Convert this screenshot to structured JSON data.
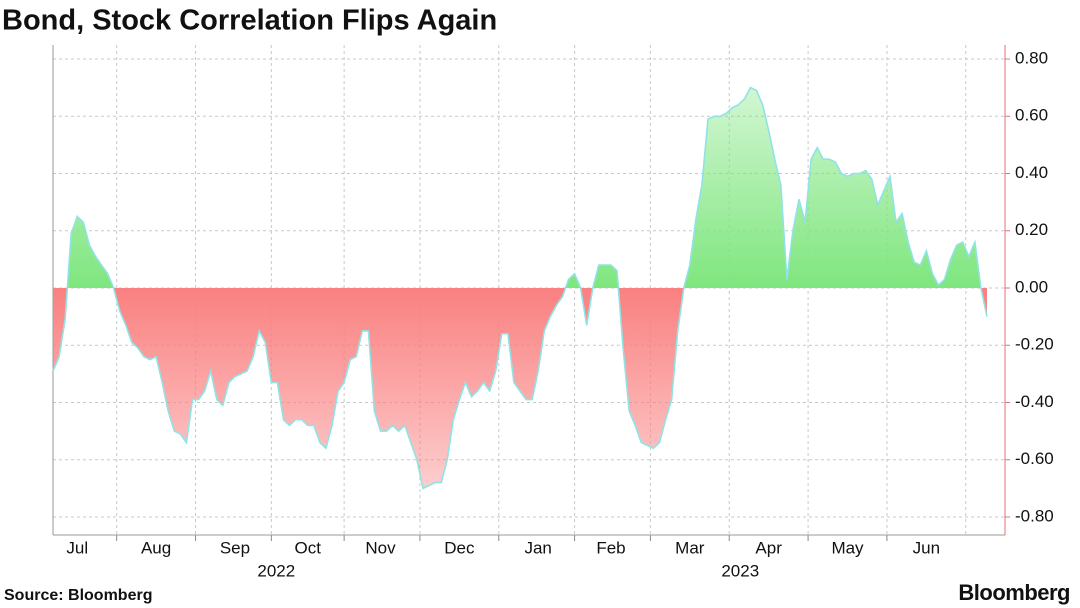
{
  "chart_data": {
    "type": "area",
    "title": "Bond, Stock Correlation Flips Again",
    "source": "Source: Bloomberg",
    "logo": "Bloomberg",
    "years": [
      "2022",
      "2023"
    ],
    "categories": [
      null,
      null,
      null,
      null,
      "Jul",
      null,
      null,
      null,
      null,
      null,
      null,
      null,
      null,
      null,
      null,
      null,
      null,
      "Aug",
      null,
      null,
      null,
      null,
      null,
      null,
      null,
      null,
      null,
      null,
      null,
      null,
      "Sep",
      null,
      null,
      null,
      null,
      null,
      null,
      null,
      null,
      null,
      null,
      null,
      "Oct",
      null,
      null,
      null,
      null,
      null,
      null,
      null,
      null,
      null,
      null,
      null,
      "Nov",
      null,
      null,
      null,
      null,
      null,
      null,
      null,
      null,
      null,
      null,
      null,
      null,
      "Dec",
      null,
      null,
      null,
      null,
      null,
      null,
      null,
      null,
      null,
      null,
      null,
      null,
      "Jan",
      null,
      null,
      null,
      null,
      null,
      null,
      null,
      null,
      null,
      null,
      null,
      "Feb",
      null,
      null,
      null,
      null,
      null,
      null,
      null,
      null,
      null,
      null,
      null,
      null,
      "Mar",
      null,
      null,
      null,
      null,
      null,
      null,
      null,
      null,
      null,
      null,
      null,
      null,
      "Apr",
      null,
      null,
      null,
      null,
      null,
      null,
      null,
      null,
      null,
      null,
      null,
      null,
      "May",
      null,
      null,
      null,
      null,
      null,
      null,
      null,
      null,
      null,
      null,
      null,
      null,
      "Jun",
      null,
      null,
      null,
      null,
      null,
      null,
      null,
      null,
      null,
      null
    ],
    "values": [
      -0.29,
      -0.24,
      -0.11,
      0.19,
      0.25,
      0.23,
      0.15,
      0.11,
      0.08,
      0.05,
      0,
      -0.08,
      -0.13,
      -0.19,
      -0.21,
      -0.24,
      -0.25,
      -0.24,
      -0.33,
      -0.43,
      -0.5,
      -0.51,
      -0.54,
      -0.39,
      -0.39,
      -0.36,
      -0.29,
      -0.39,
      -0.41,
      -0.33,
      -0.31,
      -0.3,
      -0.29,
      -0.24,
      -0.15,
      -0.19,
      -0.33,
      -0.33,
      -0.46,
      -0.48,
      -0.46,
      -0.46,
      -0.48,
      -0.48,
      -0.54,
      -0.56,
      -0.48,
      -0.36,
      -0.33,
      -0.25,
      -0.24,
      -0.15,
      -0.15,
      -0.43,
      -0.5,
      -0.5,
      -0.48,
      -0.5,
      -0.48,
      -0.54,
      -0.6,
      -0.7,
      -0.69,
      -0.68,
      -0.68,
      -0.6,
      -0.46,
      -0.39,
      -0.33,
      -0.38,
      -0.36,
      -0.33,
      -0.36,
      -0.29,
      -0.16,
      -0.16,
      -0.33,
      -0.36,
      -0.39,
      -0.39,
      -0.29,
      -0.15,
      -0.1,
      -0.06,
      -0.03,
      0.03,
      0.05,
      0,
      -0.13,
      0,
      0.08,
      0.08,
      0.08,
      0.06,
      -0.21,
      -0.43,
      -0.48,
      -0.54,
      -0.55,
      -0.56,
      -0.54,
      -0.46,
      -0.39,
      -0.15,
      0,
      0.08,
      0.24,
      0.36,
      0.59,
      0.6,
      0.6,
      0.61,
      0.63,
      0.64,
      0.66,
      0.7,
      0.69,
      0.64,
      0.55,
      0.45,
      0.36,
      0.03,
      0.2,
      0.31,
      0.23,
      0.45,
      0.49,
      0.45,
      0.45,
      0.44,
      0.4,
      0.39,
      0.4,
      0.4,
      0.41,
      0.38,
      0.29,
      0.34,
      0.39,
      0.23,
      0.26,
      0.16,
      0.09,
      0.08,
      0.13,
      0.05,
      0.01,
      0.03,
      0.1,
      0.15,
      0.16,
      0.11,
      0.16,
      0,
      -0.1
    ],
    "positive_color": "#7ee67e",
    "negative_color": "#fa8080",
    "line_color": "#8fe3e6",
    "ylim": [
      -0.8,
      0.8
    ],
    "yticks": [
      {
        "value": 0.8,
        "label": "0.80"
      },
      {
        "value": 0.6,
        "label": "0.60"
      },
      {
        "value": 0.4,
        "label": "0.40"
      },
      {
        "value": 0.2,
        "label": "0.20"
      },
      {
        "value": 0,
        "label": "0.00"
      },
      {
        "value": -0.2,
        "label": "-0.20"
      },
      {
        "value": -0.4,
        "label": "-0.40"
      },
      {
        "value": -0.6,
        "label": "-0.60"
      },
      {
        "value": -0.8,
        "label": "-0.80"
      }
    ],
    "grid": true,
    "y_axis_side": "right"
  }
}
